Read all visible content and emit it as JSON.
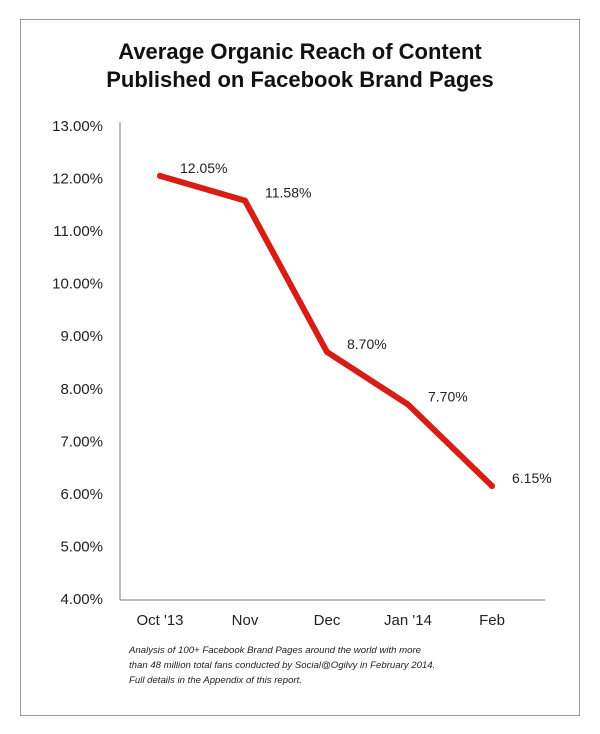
{
  "chart_data": {
    "type": "line",
    "title_lines": [
      "Average Organic Reach of Content",
      "Published on Facebook Brand Pages"
    ],
    "categories": [
      "Oct '13",
      "Nov",
      "Dec",
      "Jan '14",
      "Feb"
    ],
    "values": [
      12.05,
      11.58,
      8.7,
      7.7,
      6.15
    ],
    "data_labels": [
      "12.05%",
      "11.58%",
      "8.70%",
      "7.70%",
      "6.15%"
    ],
    "y_ticks": [
      "4.00%",
      "5.00%",
      "6.00%",
      "7.00%",
      "8.00%",
      "9.00%",
      "10.00%",
      "11.00%",
      "12.00%",
      "13.00%"
    ],
    "ylim": [
      4,
      13
    ],
    "xlabel": "",
    "ylabel": "",
    "grid": false,
    "line_color": "#d71e14"
  },
  "caption_lines": [
    "Analysis of 100+ Facebook Brand Pages around the world with more",
    "than 48 million total fans conducted by Social@Ogilvy in February 2014.",
    "Full details in the Appendix of this report."
  ]
}
